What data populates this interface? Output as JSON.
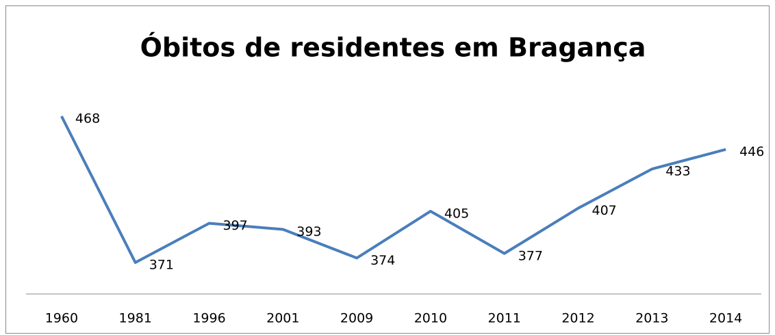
{
  "chart_data": {
    "type": "line",
    "title": "Óbitos de residentes em Bragança",
    "categories": [
      "1960",
      "1981",
      "1996",
      "2001",
      "2009",
      "2010",
      "2011",
      "2012",
      "2013",
      "2014"
    ],
    "values": [
      468,
      371,
      397,
      393,
      374,
      405,
      377,
      407,
      433,
      446
    ],
    "color": "#4a7ebb"
  }
}
